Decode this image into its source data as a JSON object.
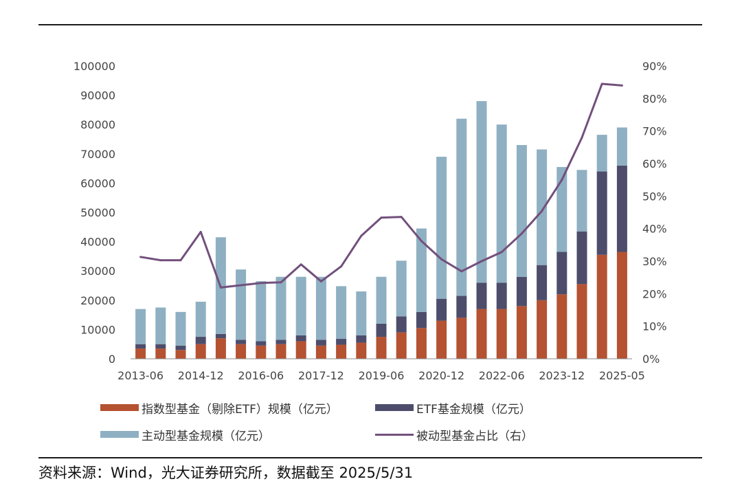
{
  "colors": {
    "index": "#b55232",
    "etf": "#4d4d6b",
    "active": "#8fb0c2",
    "passive_ratio": "#72507c"
  },
  "legend": {
    "index": "指数型基金（剔除ETF）规模（亿元）",
    "etf": "ETF基金规模（亿元）",
    "active": "主动型基金规模（亿元）",
    "passive_ratio": "被动型基金占比（右）"
  },
  "source": "资料来源：Wind，光大证券研究所，数据截至 2025/5/31",
  "chart_data": {
    "type": "bar",
    "stacked": true,
    "x_tick_labels": [
      "2013-06",
      "2014-12",
      "2016-06",
      "2017-12",
      "2019-06",
      "2020-12",
      "2022-06",
      "2023-12",
      "2025-05"
    ],
    "left_axis": {
      "ylim": [
        0,
        100000
      ],
      "ticks": [
        "0",
        "10000",
        "20000",
        "30000",
        "40000",
        "50000",
        "60000",
        "70000",
        "80000",
        "90000",
        "100000"
      ]
    },
    "right_axis": {
      "ylim": [
        0,
        90
      ],
      "unit": "%",
      "ticks": [
        "0%",
        "10%",
        "20%",
        "30%",
        "40%",
        "50%",
        "60%",
        "70%",
        "80%",
        "90%"
      ]
    },
    "bar_count": 25,
    "series": [
      {
        "name": "指数型基金（剔除ETF）规模（亿元）",
        "type": "bar",
        "axis": "left",
        "values": [
          3500,
          3500,
          3000,
          5000,
          7000,
          5000,
          4500,
          5000,
          6000,
          4500,
          4800,
          5500,
          7500,
          9000,
          10500,
          13000,
          14000,
          17000,
          17000,
          18000,
          20000,
          22000,
          25500,
          35500,
          36500
        ]
      },
      {
        "name": "ETF基金规模（亿元）",
        "type": "bar",
        "axis": "left",
        "values": [
          1500,
          1500,
          1500,
          2500,
          1500,
          1500,
          1500,
          1500,
          2000,
          2000,
          2000,
          2500,
          4500,
          5500,
          5500,
          7500,
          7500,
          9000,
          9000,
          10000,
          12000,
          14500,
          18000,
          28500,
          29500
        ]
      },
      {
        "name": "主动型基金规模（亿元）",
        "type": "bar",
        "axis": "left",
        "values": [
          12000,
          12500,
          11500,
          12000,
          33000,
          24000,
          20500,
          21500,
          20000,
          21500,
          18000,
          15000,
          16000,
          19000,
          28500,
          48500,
          60500,
          62000,
          54000,
          45000,
          39500,
          29000,
          21000,
          12500,
          13000
        ]
      },
      {
        "name": "被动型基金占比（右）",
        "type": "line",
        "axis": "right",
        "values": [
          31.3,
          30.3,
          30.3,
          39.0,
          21.9,
          22.6,
          23.3,
          23.5,
          29.0,
          23.8,
          28.4,
          37.8,
          43.4,
          43.6,
          36.2,
          30.6,
          26.9,
          30.0,
          32.8,
          38.5,
          45.4,
          55.0,
          68.0,
          84.5,
          84.0
        ]
      }
    ]
  }
}
